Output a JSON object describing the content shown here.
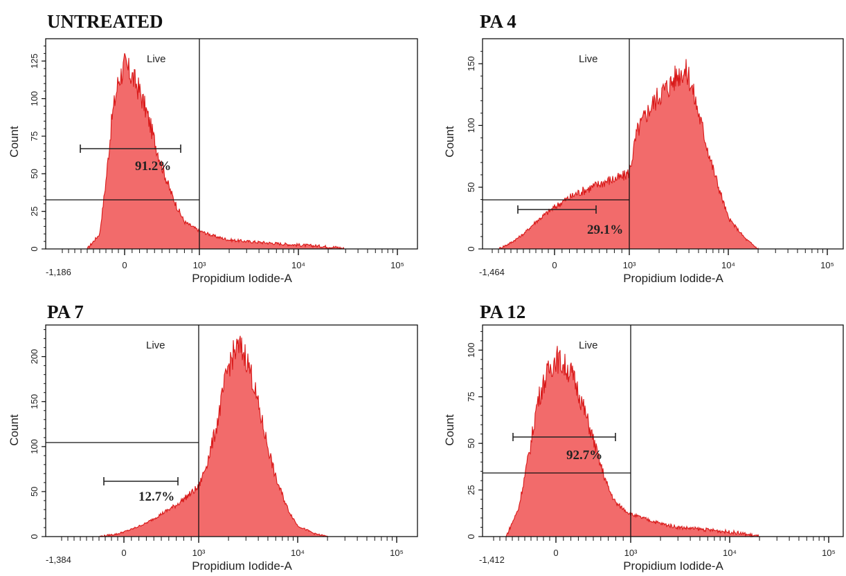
{
  "figure": {
    "x_axis_label": "Propidium Iodide-A",
    "y_axis_label": "Count",
    "gate_label": "Live",
    "fill_color": "#f26b6b",
    "line_color": "#d81818"
  },
  "chart_data": [
    {
      "type": "area",
      "title": "UNTREATED",
      "xlabel": "Propidium Iodide-A",
      "ylabel": "Count",
      "x_scale": "biexponential",
      "x_min_label": "-1,186",
      "x_ticks": [
        "0",
        "10³",
        "10⁴",
        "10⁵"
      ],
      "y_ticks": [
        "0",
        "25",
        "50",
        "75",
        "100",
        "125"
      ],
      "ylim": [
        0,
        138
      ],
      "gate_label": "Live",
      "gate_percent": "91.2%",
      "x": [
        -600,
        -400,
        -300,
        -200,
        -100,
        0,
        100,
        200,
        300,
        400,
        500,
        600,
        700,
        800,
        1000,
        1500,
        2000,
        3000,
        5000,
        8000,
        15000,
        25000,
        30000
      ],
      "counts": [
        0,
        10,
        45,
        88,
        112,
        122,
        115,
        105,
        90,
        72,
        55,
        40,
        28,
        18,
        12,
        8,
        6,
        5,
        4,
        3,
        2,
        1,
        0
      ]
    },
    {
      "type": "area",
      "title": "PA 4",
      "xlabel": "Propidium Iodide-A",
      "ylabel": "Count",
      "x_scale": "biexponential",
      "x_min_label": "-1,464",
      "x_ticks": [
        "0",
        "10³",
        "10⁴",
        "10⁵"
      ],
      "y_ticks": [
        "0",
        "50",
        "100",
        "150"
      ],
      "ylim": [
        0,
        168
      ],
      "gate_label": "Live",
      "gate_percent": "29.1%",
      "x": [
        -900,
        -700,
        -500,
        -300,
        -100,
        100,
        300,
        500,
        700,
        900,
        1000,
        1200,
        1500,
        2000,
        2500,
        3000,
        3500,
        4000,
        5000,
        7000,
        10000,
        15000,
        20000
      ],
      "counts": [
        0,
        5,
        12,
        22,
        30,
        38,
        45,
        50,
        55,
        58,
        62,
        95,
        110,
        125,
        132,
        140,
        145,
        140,
        110,
        65,
        25,
        8,
        0
      ]
    },
    {
      "type": "area",
      "title": "PA 7",
      "xlabel": "Propidium Iodide-A",
      "ylabel": "Count",
      "x_scale": "biexponential",
      "x_min_label": "-1,384",
      "x_ticks": [
        "0",
        "10³",
        "10⁴",
        "10⁵"
      ],
      "y_ticks": [
        "0",
        "50",
        "100",
        "150",
        "200"
      ],
      "ylim": [
        0,
        232
      ],
      "gate_label": "Live",
      "gate_percent": "12.7%",
      "x": [
        -400,
        -100,
        100,
        300,
        500,
        700,
        1000,
        1200,
        1500,
        1800,
        2000,
        2300,
        2600,
        3000,
        3500,
        4000,
        5000,
        6000,
        8000,
        10000,
        15000,
        20000
      ],
      "counts": [
        0,
        3,
        8,
        15,
        25,
        35,
        55,
        80,
        120,
        165,
        190,
        205,
        210,
        200,
        175,
        145,
        100,
        65,
        30,
        12,
        3,
        0
      ]
    },
    {
      "type": "area",
      "title": "PA 12",
      "xlabel": "Propidium Iodide-A",
      "ylabel": "Count",
      "x_scale": "biexponential",
      "x_min_label": "-1,412",
      "x_ticks": [
        "0",
        "10³",
        "10⁴",
        "10⁵"
      ],
      "y_ticks": [
        "0",
        "25",
        "50",
        "75",
        "100"
      ],
      "ylim": [
        0,
        112
      ],
      "gate_label": "Live",
      "gate_percent": "92.7%",
      "x": [
        -800,
        -600,
        -400,
        -300,
        -200,
        -100,
        0,
        100,
        200,
        300,
        400,
        500,
        600,
        700,
        800,
        1000,
        1500,
        2000,
        3000,
        5000,
        8000,
        12000,
        20000
      ],
      "counts": [
        0,
        15,
        50,
        72,
        82,
        90,
        96,
        92,
        88,
        78,
        65,
        52,
        38,
        26,
        18,
        12,
        9,
        7,
        5,
        4,
        3,
        2,
        0
      ]
    }
  ]
}
